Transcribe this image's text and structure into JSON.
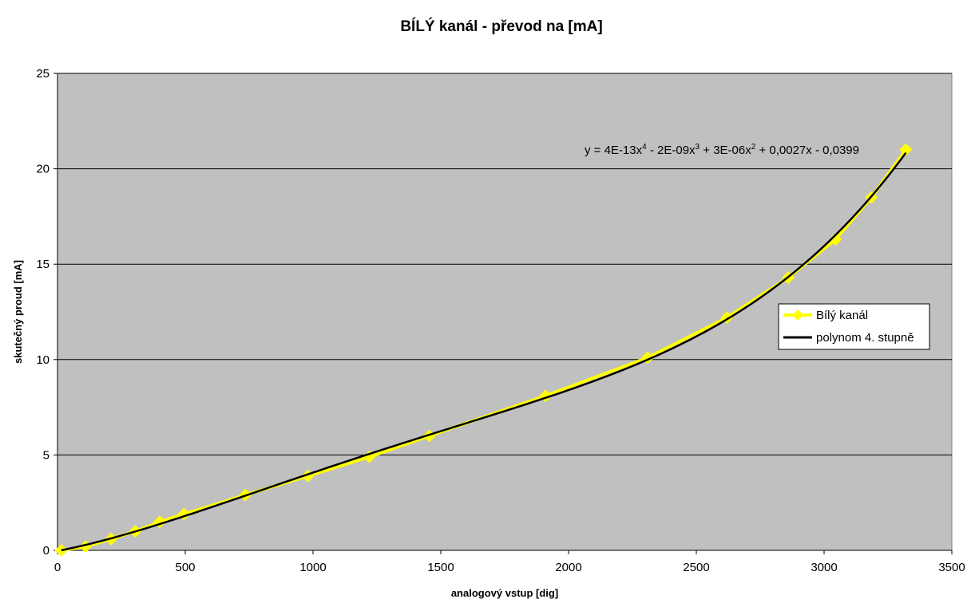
{
  "chart_data": {
    "type": "scatter",
    "title": "BÍLÝ kanál - převod na [mA]",
    "xlabel": "analogový vstup [dig]",
    "ylabel": "skutečný proud [mA]",
    "xlim": [
      0,
      3500
    ],
    "ylim": [
      0,
      25
    ],
    "xticks": [
      0,
      500,
      1000,
      1500,
      2000,
      2500,
      3000,
      3500
    ],
    "yticks": [
      0,
      5,
      10,
      15,
      20,
      25
    ],
    "grid": "horizontal",
    "legend_position": "right",
    "series": [
      {
        "name": "Bílý kanál",
        "color": "#ffff00",
        "marker": "diamond",
        "x": [
          15,
          110,
          210,
          305,
          400,
          495,
          735,
          980,
          1220,
          1455,
          1910,
          2310,
          2620,
          2860,
          3045,
          3185,
          3320
        ],
        "y": [
          0.0,
          0.2,
          0.6,
          1.0,
          1.5,
          1.9,
          2.9,
          3.9,
          4.9,
          6.0,
          8.1,
          10.1,
          12.2,
          14.3,
          16.3,
          18.5,
          21.0
        ]
      },
      {
        "name": "polynom 4. stupně",
        "color": "#000000",
        "marker": "none",
        "type": "line"
      }
    ],
    "trendline": {
      "equation_prefix": "y = 4E-13x",
      "exp4": "4",
      "part2": " - 2E-09x",
      "exp3": "3",
      "part3": " + 3E-06x",
      "exp2": "2",
      "part4": " + 0,0027x - 0,0399"
    }
  }
}
